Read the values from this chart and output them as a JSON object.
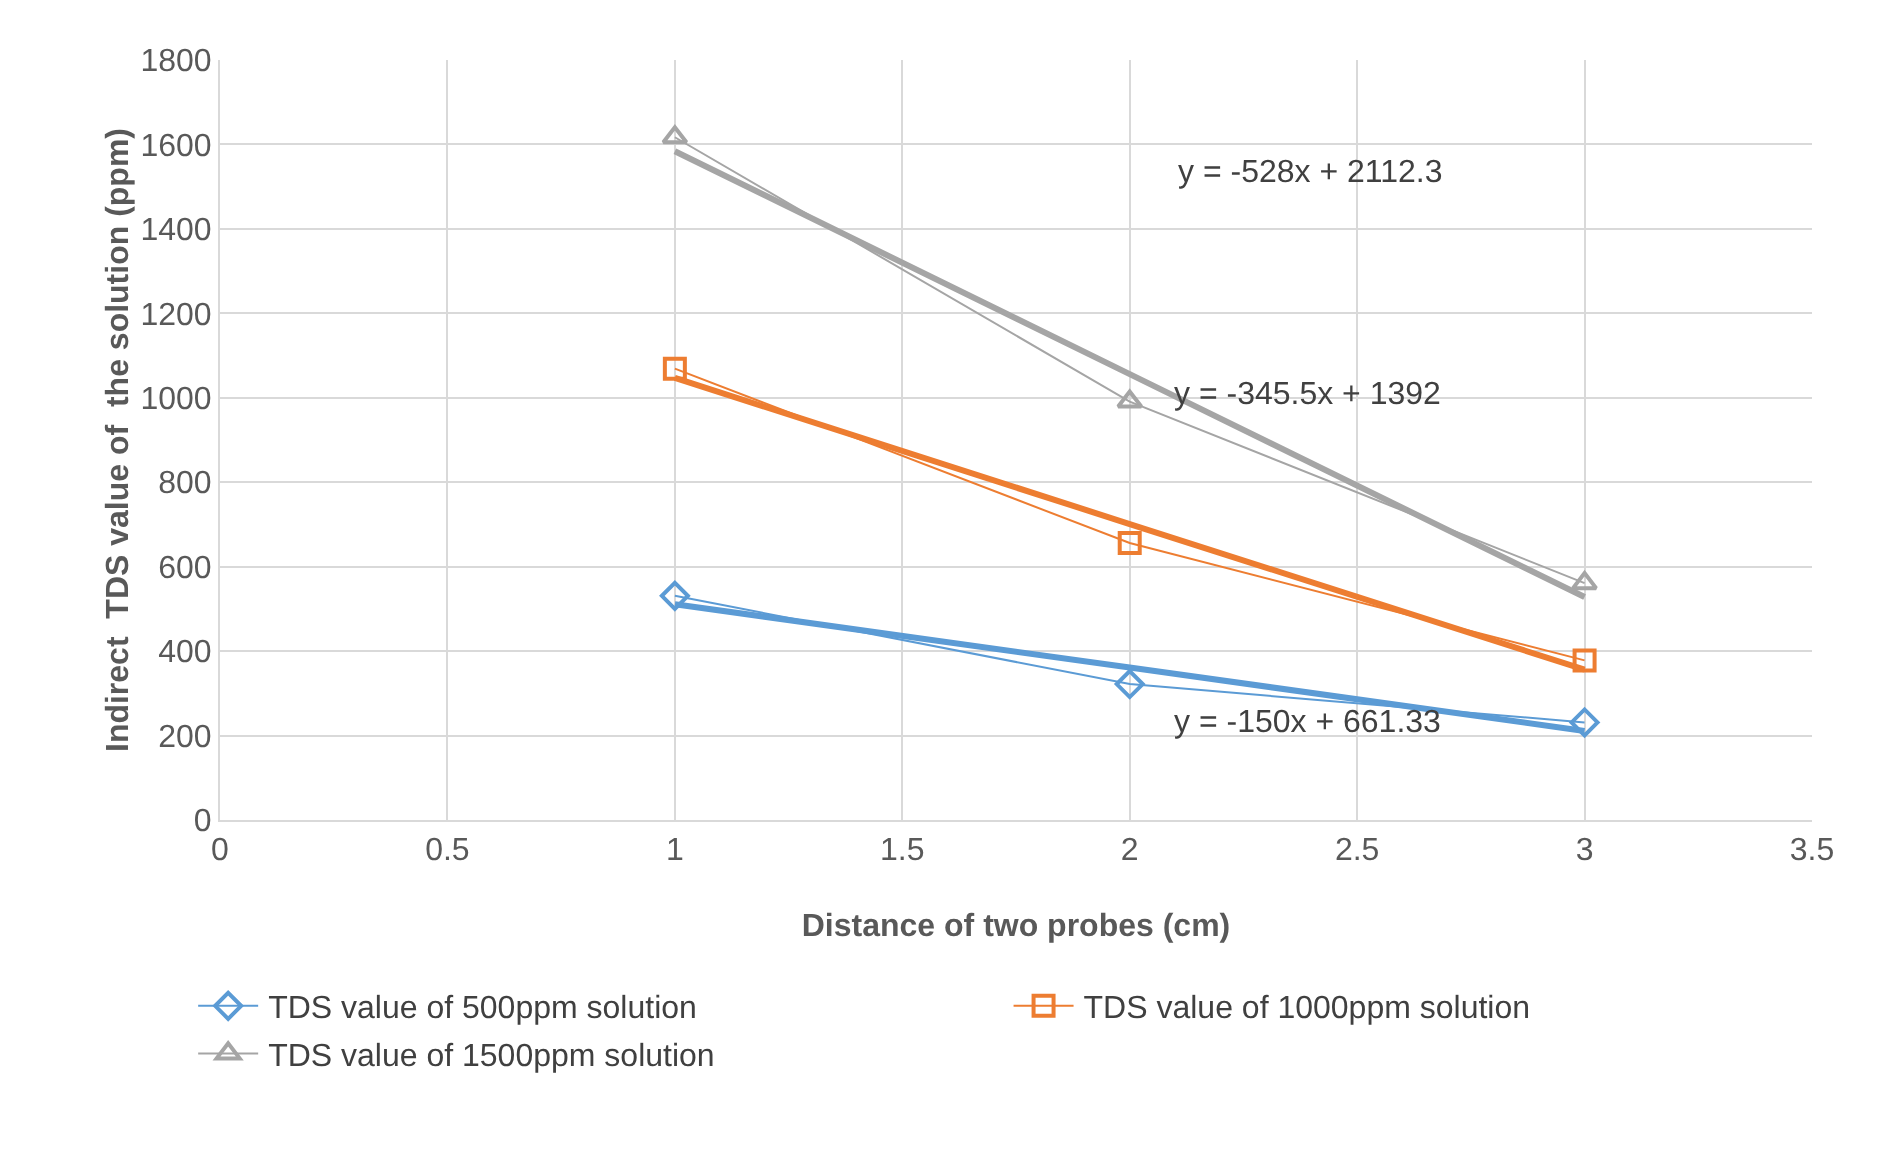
{
  "chart_data": {
    "type": "line",
    "xlabel": "Distance of two probes (cm)",
    "ylabel": "Indirect  TDS value of  the solution (ppm)",
    "x": [
      1,
      2,
      3
    ],
    "series": [
      {
        "name": "TDS value of 500ppm solution",
        "color": "#5b9bd5",
        "marker": "diamond",
        "values": [
          531,
          322,
          231
        ]
      },
      {
        "name": "TDS value of 1000ppm solution",
        "color": "#ed7d31",
        "marker": "square",
        "values": [
          1069,
          656,
          378
        ]
      },
      {
        "name": "TDS value of 1500ppm solution",
        "color": "#a5a5a5",
        "marker": "triangle",
        "values": [
          1617,
          991,
          561
        ]
      },
      {
        "color": "#5b9bd5",
        "marker": "none",
        "values": [
          511,
          361,
          211
        ]
      },
      {
        "color": "#ed7d31",
        "marker": "none",
        "values": [
          1047,
          701,
          356
        ]
      },
      {
        "color": "#a5a5a5",
        "marker": "none",
        "values": [
          1584,
          1056,
          528
        ]
      }
    ],
    "annotations": [
      "y = -150x + 661.33",
      "y = -345.5x + 1392",
      "y = -528x + 2112.3"
    ],
    "xlim": [
      0,
      3.5
    ],
    "xticks": [
      0,
      0.5,
      1,
      1.5,
      2,
      2.5,
      3,
      3.5
    ],
    "ylim": [
      0,
      1800
    ],
    "yticks": [
      0,
      200,
      400,
      600,
      800,
      1000,
      1200,
      1400,
      1600,
      1800
    ],
    "grid": true,
    "legend": "bottom"
  }
}
